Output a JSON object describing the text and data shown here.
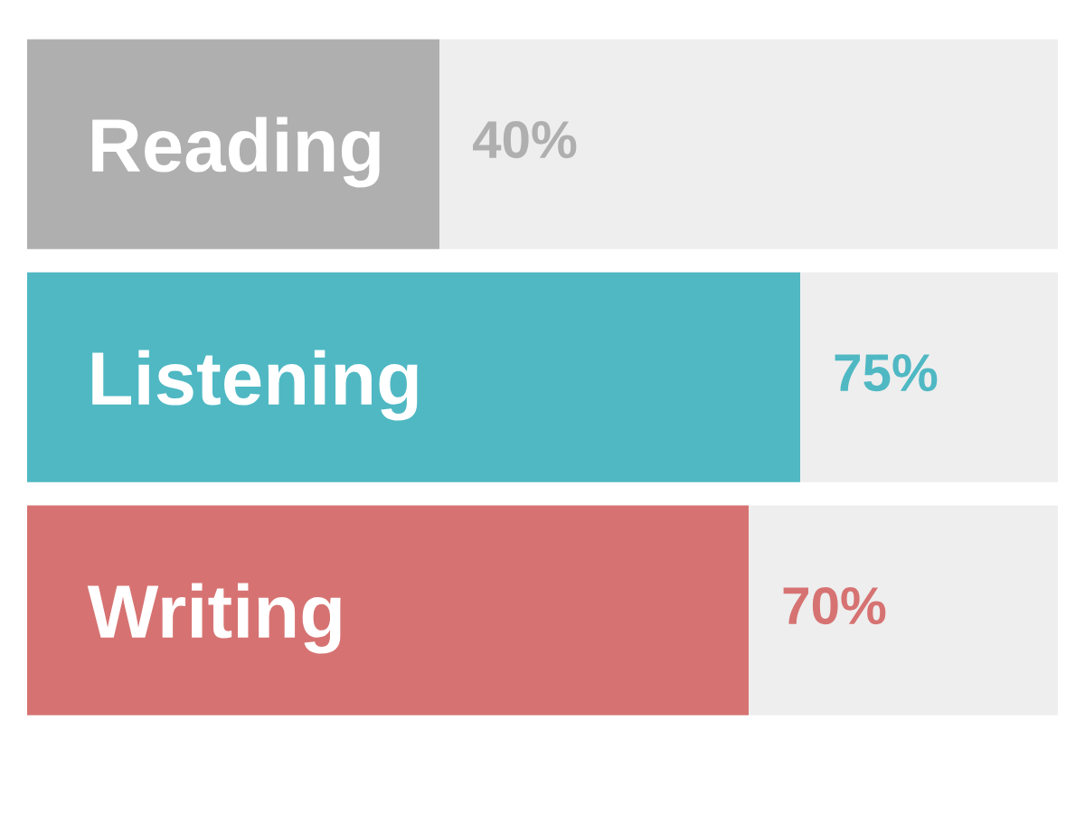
{
  "chart_data": {
    "type": "bar",
    "orientation": "horizontal",
    "stacked": true,
    "categories": [
      "Reading",
      "Listening",
      "Writing"
    ],
    "series": [
      {
        "values": [
          40,
          75,
          70
        ],
        "colors": [
          "#afafaf",
          "#4fb8c3",
          "#d67372"
        ],
        "value_labels": [
          "40%",
          "75%",
          "70%"
        ]
      },
      {
        "values": [
          60,
          25,
          30
        ],
        "color": "#eeeeee"
      }
    ],
    "xlim": [
      0,
      100
    ],
    "tick_labels": "y"
  }
}
